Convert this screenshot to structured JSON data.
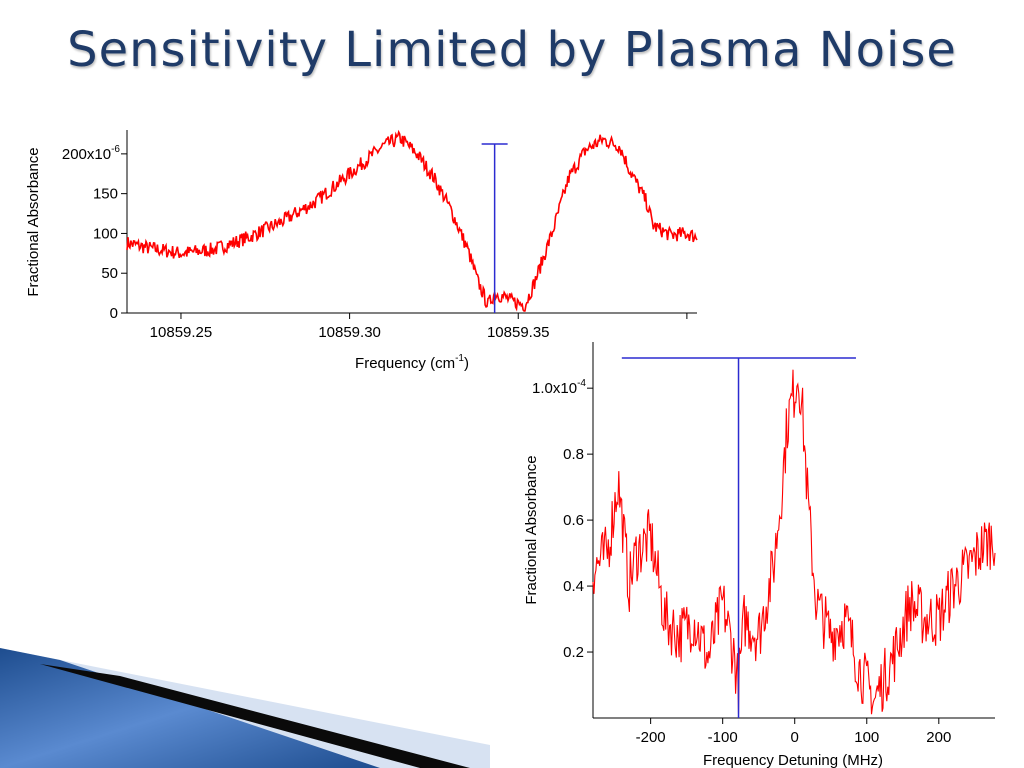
{
  "slide": {
    "title": "Sensitivity Limited by Plasma Noise",
    "colors": {
      "title": "#1f3b68",
      "trace": "#ff0000",
      "marker": "#2b2bd0"
    }
  },
  "chart_data": [
    {
      "type": "line",
      "title": "",
      "xlabel": "Frequency (cm",
      "xlabel_sup": "-1",
      "xlabel_suffix": ")",
      "ylabel": "Fractional Absorbance",
      "xlim": [
        10859.234,
        10859.403
      ],
      "ylim": [
        0,
        230
      ],
      "yscale_label": "x10",
      "yscale_exp": "-6",
      "xticks": [
        "10859.25",
        "10859.30",
        "10859.35"
      ],
      "yticks": [
        "200",
        "150",
        "100",
        "50",
        "0"
      ],
      "marker": {
        "x": 10859.343,
        "y_top": 220
      },
      "series": [
        {
          "x": [
            10859.234,
            10859.24,
            10859.25,
            10859.26,
            10859.27,
            10859.28,
            10859.29,
            10859.3,
            10859.31,
            10859.315,
            10859.32,
            10859.325,
            10859.33,
            10859.335,
            10859.338,
            10859.341,
            10859.343,
            10859.346,
            10859.348,
            10859.352,
            10859.355,
            10859.36,
            10859.365,
            10859.37,
            10859.375,
            10859.38,
            10859.383,
            10859.388,
            10859.39,
            10859.395,
            10859.4,
            10859.403
          ],
          "y": [
            88,
            82,
            75,
            80,
            95,
            115,
            140,
            175,
            210,
            220,
            200,
            170,
            130,
            80,
            40,
            10,
            25,
            20,
            15,
            10,
            40,
            100,
            170,
            205,
            218,
            210,
            180,
            140,
            110,
            98,
            100,
            95
          ]
        }
      ]
    },
    {
      "type": "line",
      "title": "",
      "xlabel": "Frequency Detuning (MHz)",
      "ylabel": "Fractional Absorbance",
      "xlim": [
        -280,
        278
      ],
      "ylim": [
        0,
        1.14
      ],
      "yscale_label": "x10",
      "yscale_exp": "-4",
      "xticks": [
        "-200",
        "-100",
        "0",
        "100",
        "200"
      ],
      "yticks": [
        "1.0",
        "0.8",
        "0.6",
        "0.4",
        "0.2"
      ],
      "marker": {
        "x": -78,
        "y_top": 1.1,
        "hline_x": [
          -240,
          85
        ]
      },
      "series": [
        {
          "x": [
            -280,
            -260,
            -245,
            -230,
            -220,
            -200,
            -180,
            -160,
            -140,
            -120,
            -100,
            -85,
            -78,
            -70,
            -50,
            -30,
            -20,
            -10,
            0,
            5,
            10,
            20,
            30,
            50,
            70,
            90,
            110,
            120,
            140,
            160,
            180,
            200,
            220,
            240,
            260,
            278
          ],
          "y": [
            0.45,
            0.5,
            0.72,
            0.4,
            0.5,
            0.55,
            0.3,
            0.25,
            0.3,
            0.18,
            0.35,
            0.2,
            0.1,
            0.3,
            0.25,
            0.45,
            0.65,
            0.9,
            1.0,
            1.05,
            0.95,
            0.6,
            0.35,
            0.25,
            0.3,
            0.15,
            0.05,
            0.1,
            0.2,
            0.35,
            0.3,
            0.3,
            0.4,
            0.45,
            0.52,
            0.55
          ]
        }
      ]
    }
  ]
}
